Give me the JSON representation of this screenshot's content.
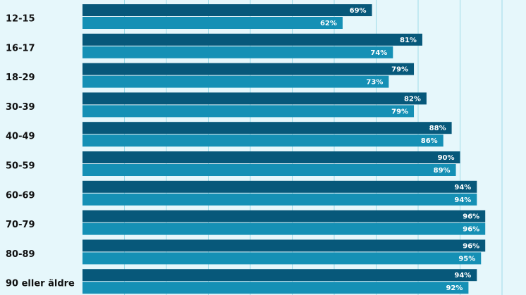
{
  "chart_data": {
    "type": "bar",
    "orientation": "horizontal",
    "categories": [
      "12-15",
      "16-17",
      "18-29",
      "30-39",
      "40-49",
      "50-59",
      "60-69",
      "70-79",
      "80-89",
      "90 eller äldre"
    ],
    "series": [
      {
        "values": [
          69,
          81,
          79,
          82,
          88,
          90,
          94,
          96,
          96,
          94
        ],
        "labels": [
          "69%",
          "81%",
          "79%",
          "82%",
          "88%",
          "90%",
          "94%",
          "96%",
          "96%",
          "94%"
        ],
        "color": "#07587a"
      },
      {
        "values": [
          62,
          74,
          73,
          79,
          86,
          89,
          94,
          96,
          95,
          92
        ],
        "labels": [
          "62%",
          "74%",
          "73%",
          "79%",
          "86%",
          "89%",
          "94%",
          "96%",
          "95%",
          "92%"
        ],
        "color": "#1590b5"
      }
    ],
    "xlim": [
      0,
      100
    ],
    "grid": true,
    "background": "#e6f7fb"
  }
}
